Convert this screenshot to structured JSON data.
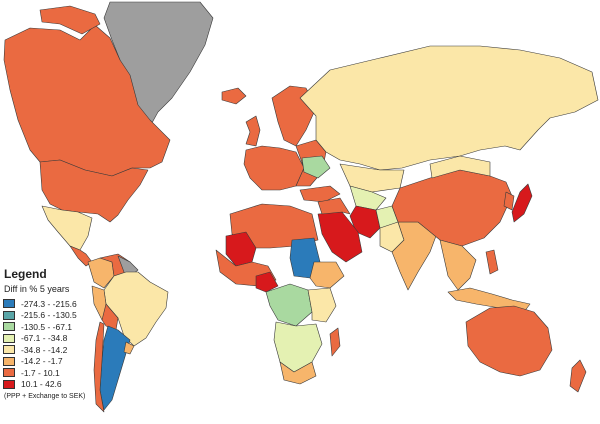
{
  "legend": {
    "title": "Legend",
    "subtitle": "Diff in % 5 years",
    "note": "(PPP + Exchange to SEK)",
    "classes": [
      {
        "label": "-274.3 - -215.6",
        "color": "#2b7bba"
      },
      {
        "label": "-215.6 - -130.5",
        "color": "#5aa6a8"
      },
      {
        "label": "-130.5 - -67.1",
        "color": "#a9d9a0"
      },
      {
        "label": "-67.1 - -34.8",
        "color": "#e4f1b2"
      },
      {
        "label": "-34.8 - -14.2",
        "color": "#fbe7a8"
      },
      {
        "label": "-14.2 - -1.7",
        "color": "#f7b56b"
      },
      {
        "label": "-1.7 - 10.1",
        "color": "#ea6a41"
      },
      {
        "label": "10.1 - 42.6",
        "color": "#d7191c"
      }
    ],
    "no_data_color": "#9e9e9e"
  }
}
